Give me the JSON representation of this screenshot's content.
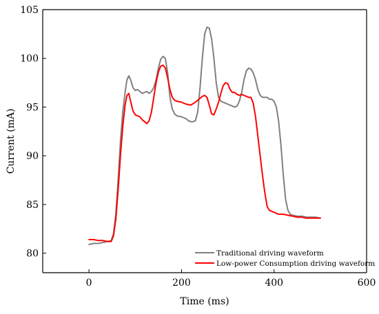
{
  "chart_data": {
    "type": "line",
    "title": "",
    "xlabel": "Time (ms)",
    "ylabel": "Current (mA)",
    "xlim": [
      -100,
      600
    ],
    "ylim": [
      78,
      105
    ],
    "xticks": [
      0,
      200,
      400,
      600
    ],
    "yticks": [
      80,
      85,
      90,
      95,
      100,
      105
    ],
    "grid": false,
    "legend_position": "bottom-right",
    "series": [
      {
        "name": "Traditional driving waveform",
        "color": "#7f7f7f",
        "x": [
          0,
          10,
          20,
          30,
          40,
          48,
          53,
          58,
          63,
          68,
          73,
          78,
          82,
          86,
          90,
          95,
          100,
          105,
          110,
          115,
          120,
          125,
          130,
          135,
          140,
          145,
          150,
          155,
          160,
          165,
          170,
          175,
          180,
          185,
          190,
          200,
          210,
          215,
          220,
          225,
          230,
          235,
          240,
          245,
          250,
          255,
          260,
          265,
          270,
          275,
          280,
          285,
          290,
          295,
          300,
          305,
          310,
          315,
          320,
          325,
          330,
          335,
          340,
          345,
          350,
          355,
          360,
          365,
          370,
          375,
          380,
          385,
          390,
          395,
          400,
          405,
          410,
          415,
          420,
          425,
          430,
          435,
          440,
          450,
          460,
          470,
          480,
          490,
          500
        ],
        "y": [
          80.9,
          81.0,
          81.0,
          81.1,
          81.2,
          81.3,
          82.0,
          84.0,
          87.5,
          91.5,
          94.5,
          96.5,
          97.8,
          98.2,
          97.8,
          97.0,
          96.7,
          96.8,
          96.6,
          96.4,
          96.5,
          96.6,
          96.4,
          96.6,
          97.0,
          97.8,
          99.0,
          99.9,
          100.2,
          100.0,
          98.5,
          96.0,
          94.8,
          94.3,
          94.1,
          94.0,
          93.8,
          93.6,
          93.5,
          93.5,
          93.6,
          94.5,
          97.0,
          100.0,
          102.5,
          103.2,
          103.1,
          102.0,
          100.0,
          97.5,
          96.0,
          95.6,
          95.5,
          95.4,
          95.3,
          95.2,
          95.1,
          95.0,
          95.1,
          95.6,
          96.5,
          97.8,
          98.7,
          99.0,
          98.9,
          98.5,
          97.8,
          96.8,
          96.2,
          96.0,
          96.0,
          96.0,
          95.8,
          95.8,
          95.6,
          95.0,
          93.5,
          91.0,
          88.0,
          85.5,
          84.4,
          84.0,
          83.9,
          83.8,
          83.8,
          83.7,
          83.7,
          83.7,
          83.6
        ]
      },
      {
        "name": "Low-power Consumption driving waveform",
        "color": "#ff0000",
        "x": [
          0,
          10,
          20,
          30,
          40,
          48,
          53,
          58,
          63,
          68,
          73,
          78,
          82,
          86,
          90,
          95,
          100,
          105,
          110,
          115,
          120,
          125,
          130,
          135,
          140,
          145,
          150,
          155,
          160,
          165,
          170,
          175,
          180,
          185,
          190,
          200,
          210,
          220,
          230,
          240,
          245,
          250,
          255,
          260,
          265,
          270,
          275,
          280,
          285,
          290,
          295,
          300,
          305,
          310,
          315,
          320,
          325,
          330,
          335,
          340,
          345,
          350,
          355,
          360,
          365,
          370,
          375,
          380,
          385,
          390,
          400,
          410,
          420,
          430,
          440,
          450,
          460,
          470,
          480,
          490,
          500
        ],
        "y": [
          81.4,
          81.4,
          81.3,
          81.3,
          81.2,
          81.2,
          81.8,
          83.5,
          86.5,
          90.0,
          93.0,
          95.2,
          96.2,
          96.4,
          95.6,
          94.6,
          94.2,
          94.1,
          94.0,
          93.7,
          93.5,
          93.3,
          93.6,
          94.5,
          96.0,
          97.5,
          98.6,
          99.2,
          99.3,
          99.0,
          98.0,
          96.8,
          96.0,
          95.7,
          95.6,
          95.5,
          95.3,
          95.2,
          95.5,
          95.9,
          96.1,
          96.2,
          96.0,
          95.2,
          94.3,
          94.2,
          94.8,
          95.5,
          96.4,
          97.2,
          97.5,
          97.4,
          96.8,
          96.5,
          96.5,
          96.3,
          96.2,
          96.3,
          96.2,
          96.1,
          96.0,
          96.0,
          95.4,
          94.0,
          92.0,
          90.0,
          88.0,
          86.2,
          84.8,
          84.4,
          84.2,
          84.0,
          84.0,
          83.9,
          83.8,
          83.7,
          83.7,
          83.6,
          83.6,
          83.6,
          83.6
        ]
      }
    ]
  }
}
